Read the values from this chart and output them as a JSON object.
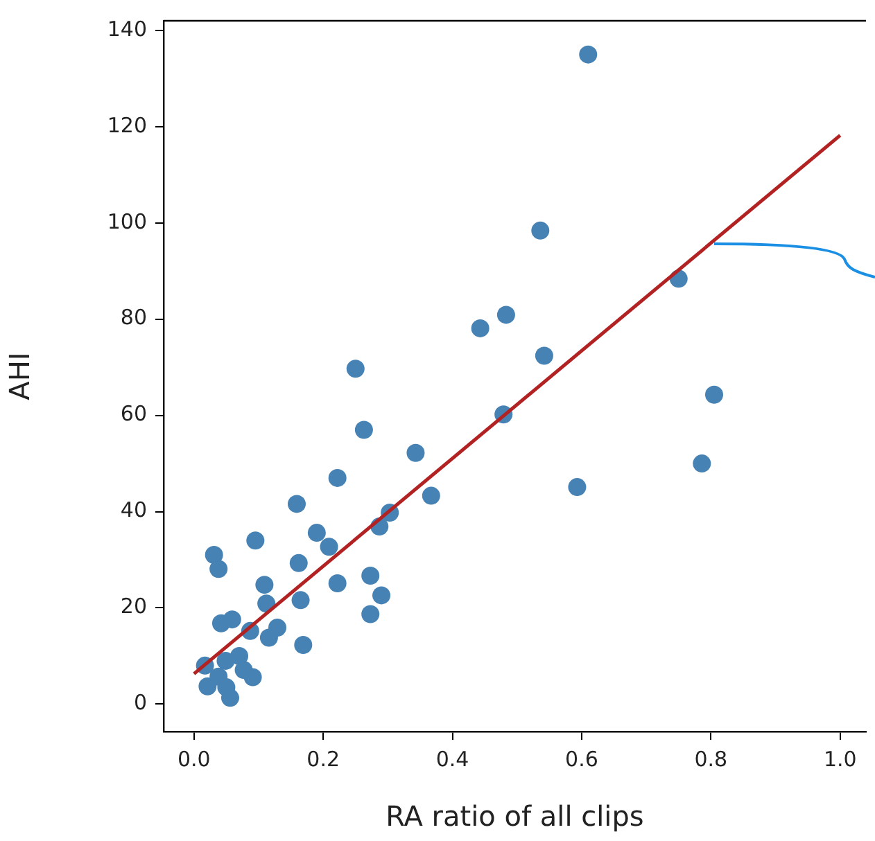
{
  "chart_data": {
    "type": "scatter",
    "xlabel": "RA ratio of all clips",
    "ylabel": "AHI",
    "xlim": [
      -0.047,
      1.04
    ],
    "ylim": [
      -5.7,
      142
    ],
    "xticks": [
      {
        "value": 0,
        "label": "0.0"
      },
      {
        "value": 0.2,
        "label": "0.2"
      },
      {
        "value": 0.4,
        "label": "0.4"
      },
      {
        "value": 0.6,
        "label": "0.6"
      },
      {
        "value": 0.8,
        "label": "0.8"
      },
      {
        "value": 1,
        "label": "1.0"
      }
    ],
    "yticks": [
      0,
      20,
      40,
      60,
      80,
      100,
      120,
      140
    ],
    "grid": false,
    "legend": false,
    "marker": "circle",
    "series": [
      {
        "type": "scatter",
        "color": "#4682b4",
        "x": [
          0.61,
          0.536,
          0.75,
          0.483,
          0.443,
          0.542,
          0.25,
          0.805,
          0.479,
          0.263,
          0.343,
          0.786,
          0.222,
          0.593,
          0.367,
          0.159,
          0.303,
          0.287,
          0.031,
          0.038,
          0.095,
          0.19,
          0.209,
          0.162,
          0.273,
          0.222,
          0.109,
          0.29,
          0.112,
          0.165,
          0.273,
          0.042,
          0.059,
          0.087,
          0.129,
          0.116,
          0.169,
          0.07,
          0.049,
          0.017,
          0.091,
          0.021,
          0.056,
          0.038,
          0.077,
          0.05
        ],
        "values": [
          135,
          98.4,
          88.4,
          80.9,
          78.1,
          72.4,
          69.7,
          64.3,
          60.2,
          57,
          52.2,
          50,
          47,
          45.1,
          43.3,
          41.6,
          39.8,
          36.9,
          31,
          28.1,
          34,
          35.6,
          32.7,
          29.3,
          26.7,
          25.1,
          24.8,
          22.6,
          20.9,
          21.6,
          18.7,
          16.8,
          17.6,
          15.2,
          15.9,
          13.8,
          12.3,
          10,
          9,
          8,
          5.6,
          3.7,
          1.3,
          5.7,
          7.1,
          3.5
        ]
      },
      {
        "type": "line",
        "color": "#b22222",
        "x": [
          0,
          1
        ],
        "values": [
          6.3,
          118.2
        ],
        "marker": "none",
        "line_style": "solid"
      }
    ]
  }
}
